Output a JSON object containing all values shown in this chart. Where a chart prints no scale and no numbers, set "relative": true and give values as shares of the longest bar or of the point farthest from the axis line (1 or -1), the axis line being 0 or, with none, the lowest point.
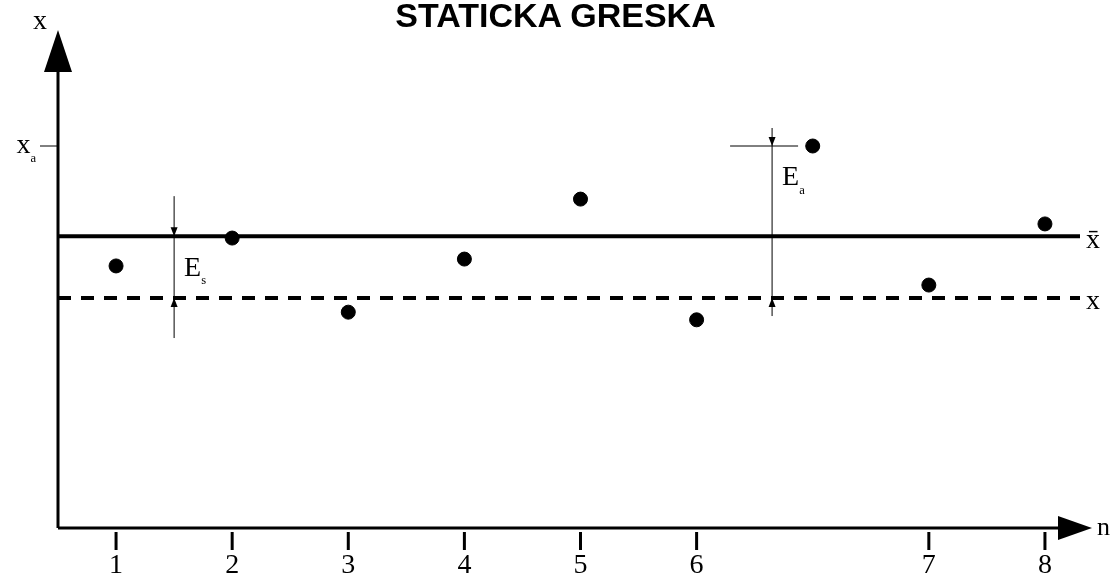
{
  "chart_data": {
    "type": "scatter",
    "title": "STATICKA GRESKA",
    "xlabel": "n",
    "ylabel": "x",
    "categories": [
      "1",
      "2",
      "3",
      "4",
      "5",
      "6",
      null,
      "7",
      "8"
    ],
    "relative": true,
    "series": [
      {
        "color": "#000000",
        "values": [
          0.686,
          0.759,
          0.565,
          0.704,
          0.861,
          0.545,
          1,
          0.636,
          0.796
        ]
      }
    ],
    "ref_lines": [
      {
        "axis": "y",
        "value": 0.764,
        "label": "x̄",
        "color": "#000000",
        "line_style": "solid"
      },
      {
        "axis": "y",
        "value": 0.602,
        "label": "x",
        "color": "#000000",
        "line_style": "dashed"
      }
    ],
    "annotations": [
      "E$_{s}$",
      "E$_{a}$",
      "x$_{a}$"
    ],
    "marker": "circle",
    "grid": false,
    "legend": false
  }
}
